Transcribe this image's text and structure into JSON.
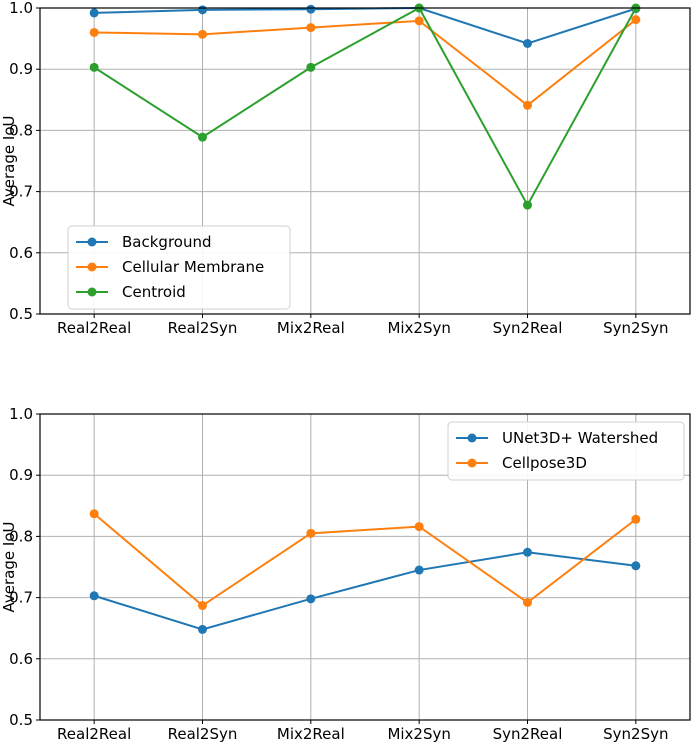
{
  "chart_data": [
    {
      "type": "line",
      "title": "",
      "xlabel": "",
      "ylabel": "Average IoU",
      "ylim": [
        0.5,
        1.0
      ],
      "yticks": [
        "0.5",
        "0.6",
        "0.7",
        "0.8",
        "0.9",
        "1.0"
      ],
      "grid": true,
      "legend_position": "bottom-left",
      "categories": [
        "Real2Real",
        "Real2Syn",
        "Mix2Real",
        "Mix2Syn",
        "Syn2Real",
        "Syn2Syn"
      ],
      "series": [
        {
          "name": "Background",
          "color": "#1f77b4",
          "values": [
            0.992,
            0.997,
            0.998,
            1.0,
            0.942,
            0.999
          ]
        },
        {
          "name": "Cellular Membrane",
          "color": "#ff7f0e",
          "values": [
            0.96,
            0.957,
            0.968,
            0.979,
            0.841,
            0.981
          ]
        },
        {
          "name": "Centroid",
          "color": "#2ca02c",
          "values": [
            0.903,
            0.789,
            0.903,
            1.0,
            0.678,
            1.0
          ]
        }
      ]
    },
    {
      "type": "line",
      "title": "",
      "xlabel": "",
      "ylabel": "Average IoU",
      "ylim": [
        0.5,
        1.0
      ],
      "yticks": [
        "0.5",
        "0.6",
        "0.7",
        "0.8",
        "0.9",
        "1.0"
      ],
      "grid": true,
      "legend_position": "top-right",
      "categories": [
        "Real2Real",
        "Real2Syn",
        "Mix2Real",
        "Mix2Syn",
        "Syn2Real",
        "Syn2Syn"
      ],
      "series": [
        {
          "name": "UNet3D+ Watershed",
          "color": "#1f77b4",
          "values": [
            0.703,
            0.648,
            0.698,
            0.745,
            0.774,
            0.752
          ]
        },
        {
          "name": "Cellpose3D",
          "color": "#ff7f0e",
          "values": [
            0.837,
            0.687,
            0.805,
            0.816,
            0.692,
            0.828
          ]
        }
      ]
    }
  ]
}
